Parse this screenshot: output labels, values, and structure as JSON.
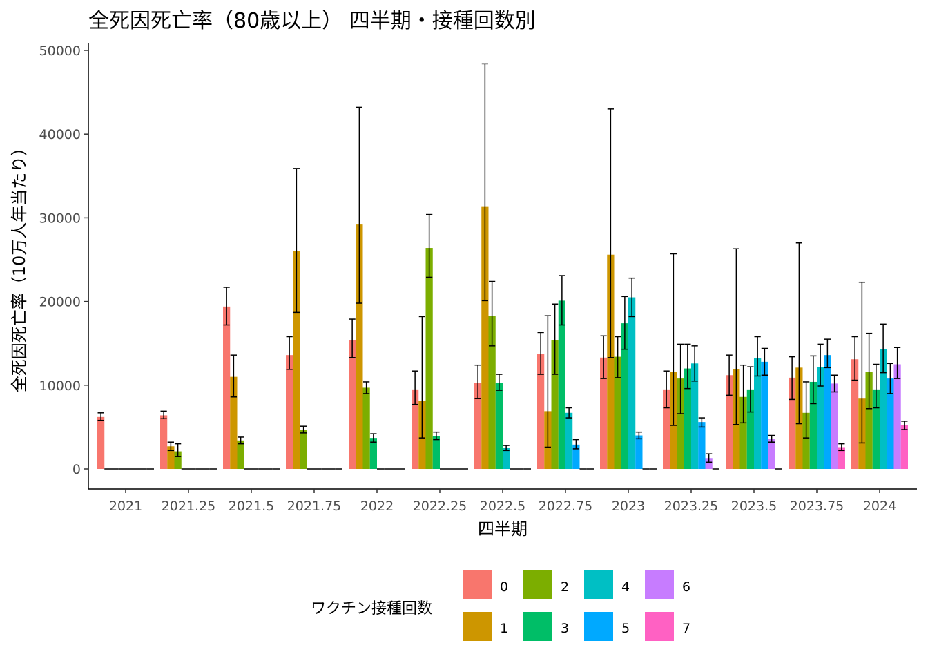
{
  "chart_data": {
    "type": "bar",
    "title": "全死因死亡率（80歳以上） 四半期・接種回数別",
    "xlabel": "四半期",
    "ylabel": "全死因死亡率（10万人年当たり）",
    "ylim": [
      0,
      50000
    ],
    "yticks": [
      0,
      10000,
      20000,
      30000,
      40000,
      50000
    ],
    "grid": false,
    "error_bars": true,
    "categories": [
      "2021",
      "2021.25",
      "2021.5",
      "2021.75",
      "2022",
      "2022.25",
      "2022.5",
      "2022.75",
      "2023",
      "2023.25",
      "2023.5",
      "2023.75",
      "2024"
    ],
    "legend": {
      "title": "ワクチン接種回数",
      "position": "bottom"
    },
    "series": [
      {
        "name": "0",
        "color": "#F8766D",
        "values": [
          6200,
          6400,
          19400,
          13600,
          15400,
          9500,
          10300,
          13700,
          13300,
          9500,
          11200,
          10900,
          13100
        ],
        "err_low": [
          5800,
          6000,
          17200,
          11900,
          13300,
          7700,
          8400,
          11300,
          10800,
          7300,
          8800,
          8300,
          10600
        ],
        "err_high": [
          6700,
          6900,
          21700,
          15800,
          17900,
          11700,
          12400,
          16300,
          15900,
          11700,
          13600,
          13400,
          15800
        ]
      },
      {
        "name": "1",
        "color": "#CD9600",
        "values": [
          0,
          2700,
          11000,
          26000,
          29200,
          8100,
          31300,
          6900,
          25600,
          11600,
          11900,
          12100,
          8400
        ],
        "err_low": [
          0,
          2200,
          8600,
          18700,
          19800,
          3700,
          20100,
          2600,
          13300,
          5200,
          5300,
          5400,
          3100
        ],
        "err_high": [
          0,
          3200,
          13600,
          35900,
          43200,
          18200,
          48400,
          18300,
          43000,
          25700,
          26300,
          27000,
          22300
        ]
      },
      {
        "name": "2",
        "color": "#7CAE00",
        "values": [
          0,
          2100,
          3400,
          4700,
          9700,
          26400,
          18300,
          15400,
          13400,
          10800,
          8600,
          6700,
          11600
        ],
        "err_low": [
          0,
          1500,
          3000,
          4300,
          9000,
          22900,
          14700,
          11300,
          10900,
          6600,
          5500,
          3700,
          7200
        ],
        "err_high": [
          0,
          3000,
          3800,
          5100,
          10400,
          30400,
          22400,
          19700,
          15800,
          14900,
          12400,
          10400,
          16200
        ]
      },
      {
        "name": "3",
        "color": "#00BE67",
        "values": [
          0,
          0,
          0,
          0,
          3700,
          3900,
          10300,
          20100,
          17400,
          12000,
          9500,
          10400,
          9500
        ],
        "err_low": [
          0,
          0,
          0,
          0,
          3200,
          3500,
          9400,
          17200,
          14300,
          9600,
          6800,
          7800,
          7300
        ],
        "err_high": [
          0,
          0,
          0,
          0,
          4200,
          4400,
          11300,
          23100,
          20600,
          14900,
          12200,
          13500,
          12500
        ]
      },
      {
        "name": "4",
        "color": "#00BFC4",
        "values": [
          0,
          0,
          0,
          0,
          0,
          0,
          2500,
          6700,
          20500,
          12600,
          13200,
          12200,
          14300
        ],
        "err_low": [
          0,
          0,
          0,
          0,
          0,
          0,
          2200,
          6100,
          18200,
          10500,
          11100,
          9900,
          11500
        ],
        "err_high": [
          0,
          0,
          0,
          0,
          0,
          0,
          2800,
          7300,
          22800,
          14700,
          15800,
          14900,
          17300
        ]
      },
      {
        "name": "5",
        "color": "#00A9FF",
        "values": [
          0,
          0,
          0,
          0,
          0,
          0,
          0,
          2900,
          4000,
          5600,
          12800,
          13600,
          10800
        ],
        "err_low": [
          0,
          0,
          0,
          0,
          0,
          0,
          0,
          2400,
          3600,
          5000,
          11200,
          12100,
          9000
        ],
        "err_high": [
          0,
          0,
          0,
          0,
          0,
          0,
          0,
          3500,
          4400,
          6100,
          14400,
          15500,
          12600
        ]
      },
      {
        "name": "6",
        "color": "#C77CFF",
        "values": [
          0,
          0,
          0,
          0,
          0,
          0,
          0,
          0,
          0,
          1300,
          3600,
          10200,
          12500
        ],
        "err_low": [
          0,
          0,
          0,
          0,
          0,
          0,
          0,
          0,
          0,
          800,
          3200,
          9200,
          10800
        ],
        "err_high": [
          0,
          0,
          0,
          0,
          0,
          0,
          0,
          0,
          0,
          1800,
          4000,
          11200,
          14500
        ]
      },
      {
        "name": "7",
        "color": "#FF61C3",
        "values": [
          0,
          0,
          0,
          0,
          0,
          0,
          0,
          0,
          0,
          0,
          0,
          2600,
          5200
        ],
        "err_low": [
          0,
          0,
          0,
          0,
          0,
          0,
          0,
          0,
          0,
          0,
          0,
          2200,
          4700
        ],
        "err_high": [
          0,
          0,
          0,
          0,
          0,
          0,
          0,
          0,
          0,
          0,
          0,
          3000,
          5700
        ]
      }
    ]
  }
}
